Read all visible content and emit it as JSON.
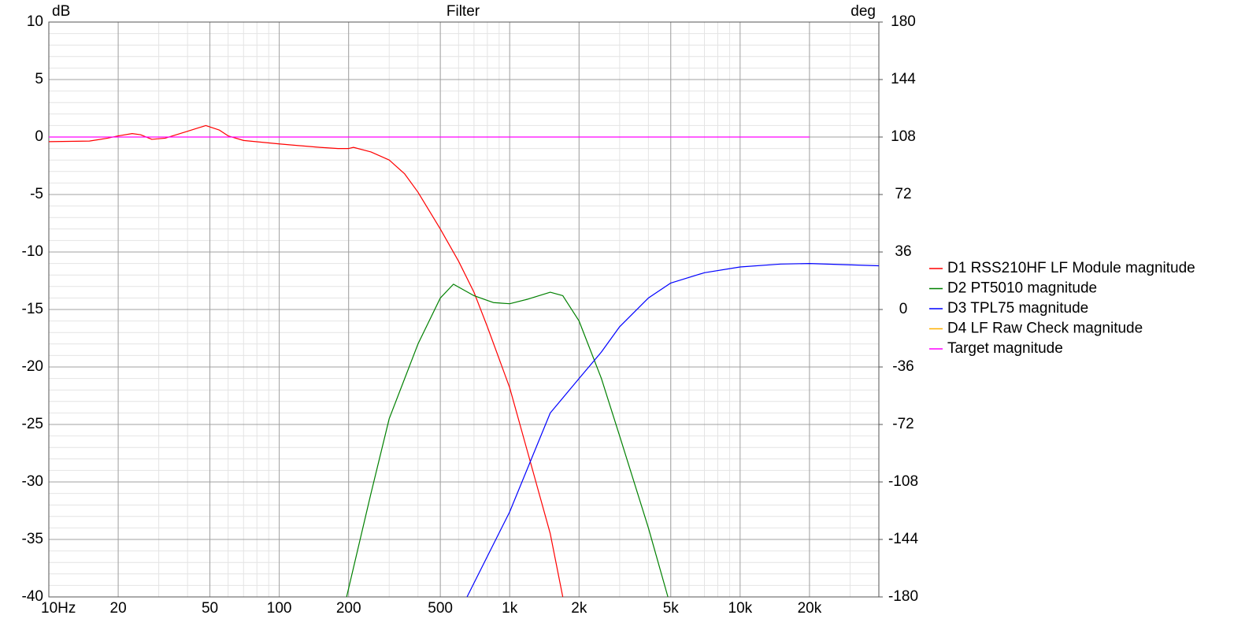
{
  "chart_data": {
    "type": "line",
    "title": "Filter",
    "ylabel": "dB",
    "y2label": "deg",
    "xscale": "log",
    "xlim": [
      10,
      40000
    ],
    "xticks": [
      {
        "value": 10,
        "label": "10Hz"
      },
      20,
      50,
      100,
      200,
      500,
      {
        "value": 1000,
        "label": "1k"
      },
      {
        "value": 2000,
        "label": "2k"
      },
      {
        "value": 5000,
        "label": "5k"
      },
      {
        "value": 10000,
        "label": "10k"
      },
      {
        "value": 20000,
        "label": "20k"
      }
    ],
    "ylim": [
      -40,
      10
    ],
    "yticks": [
      10,
      5,
      0,
      -5,
      -10,
      -15,
      -20,
      -25,
      -30,
      -35,
      -40
    ],
    "y2lim": [
      -180,
      180
    ],
    "y2ticks": [
      180,
      144,
      108,
      72,
      36,
      0,
      -36,
      -72,
      -108,
      -144,
      -180
    ],
    "grid": true,
    "legend": "right",
    "series": [
      {
        "name": "D1 RSS210HF LF Module magnitude",
        "color": "#ff0000",
        "x": [
          10,
          15,
          18,
          20,
          23,
          25,
          28,
          32,
          40,
          48,
          55,
          60,
          70,
          100,
          150,
          180,
          200,
          210,
          250,
          300,
          350,
          400,
          500,
          600,
          700,
          800,
          1000,
          1200,
          1500,
          1700
        ],
        "values": [
          -0.4,
          -0.35,
          -0.1,
          0.1,
          0.3,
          0.2,
          -0.2,
          -0.1,
          0.5,
          1.0,
          0.6,
          0.1,
          -0.3,
          -0.6,
          -0.9,
          -1.0,
          -1.0,
          -0.9,
          -1.3,
          -2.0,
          -3.2,
          -4.8,
          -8.0,
          -10.8,
          -13.5,
          -16.5,
          -21.8,
          -27.5,
          -34.5,
          -40
        ]
      },
      {
        "name": "D2 PT5010 magnitude",
        "color": "#008000",
        "x": [
          196,
          250,
          300,
          400,
          500,
          570,
          700,
          850,
          1000,
          1200,
          1500,
          1700,
          2000,
          2500,
          3000,
          4000,
          4860
        ],
        "values": [
          -40,
          -31,
          -24.5,
          -18,
          -14,
          -12.8,
          -13.8,
          -14.4,
          -14.5,
          -14.1,
          -13.5,
          -13.8,
          -16,
          -21,
          -26,
          -34,
          -40
        ]
      },
      {
        "name": "D3 TPL75 magnitude",
        "color": "#0000ff",
        "x": [
          653,
          1000,
          1500,
          2000,
          2500,
          3000,
          4000,
          5000,
          7000,
          10000,
          15000,
          20000,
          40000
        ],
        "values": [
          -40,
          -32.6,
          -24,
          -21,
          -18.7,
          -16.5,
          -14,
          -12.7,
          -11.8,
          -11.3,
          -11.05,
          -11.0,
          -11.2
        ]
      },
      {
        "name": "D4 LF Raw Check magnitude",
        "color": "#ffb000",
        "x": [],
        "values": []
      },
      {
        "name": "Target magnitude",
        "color": "#ff00ff",
        "x": [
          10,
          20000
        ],
        "values": [
          0,
          0
        ]
      }
    ]
  }
}
